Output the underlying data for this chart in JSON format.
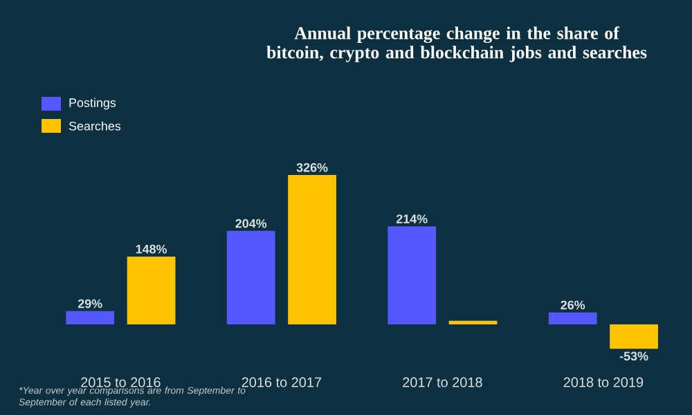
{
  "chart_data": {
    "type": "bar",
    "title": "Annual percentage change in the share of bitcoin, crypto and blockchain jobs and searches",
    "categories": [
      "2015 to 2016",
      "2016 to 2017",
      "2017 to 2018",
      "2018 to 2019"
    ],
    "series": [
      {
        "name": "Postings",
        "color": "#5558ff",
        "values": [
          29,
          204,
          214,
          26
        ],
        "value_labels": [
          "29%",
          "204%",
          "214%",
          "26%"
        ]
      },
      {
        "name": "Searches",
        "color": "#ffc300",
        "values": [
          148,
          326,
          8,
          -53
        ],
        "value_labels": [
          "148%",
          "326%",
          null,
          "-53%"
        ]
      }
    ],
    "legend": "top left",
    "annotations": [
      "*Year over year comparisons are from September to September of each listed year."
    ]
  }
}
